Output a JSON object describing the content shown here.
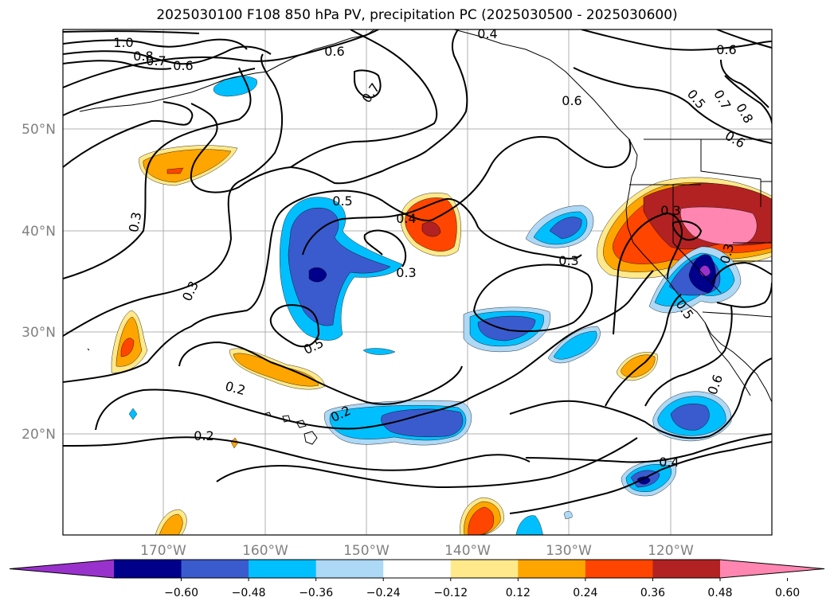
{
  "title": "2025030100 F108 850 hPa PV, precipitation PC (2025030500 - 2025030600)",
  "latitude_labels": [
    "50°N",
    "40°N",
    "30°N",
    "20°N"
  ],
  "longitude_labels": [
    "170°W",
    "160°W",
    "150°W",
    "140°W",
    "130°W",
    "120°W"
  ],
  "contour_labels": [
    "1.0",
    "0.8",
    "0.7",
    "0.6",
    "0.6",
    "0.4",
    "0.6",
    "0.7",
    "0.6",
    "0.5",
    "0.7",
    "0.8",
    "0.6",
    "0.3",
    "0.5",
    "0.4",
    "0.3",
    "0.3",
    "0.3",
    "0.3",
    "0.3",
    "0.5",
    "0.5",
    "0.2",
    "0.2",
    "0.2",
    "0.6",
    "0.4"
  ],
  "colorbar": {
    "ticks": [
      "−0.60",
      "−0.48",
      "−0.36",
      "−0.24",
      "−0.12",
      "0.12",
      "0.24",
      "0.36",
      "0.48",
      "0.60"
    ],
    "colors": [
      "#9932cc",
      "#00008b",
      "#3a5bcd",
      "#00bfff",
      "#add8f6",
      "#ffffff",
      "#ffe98a",
      "#ffa500",
      "#ff4500",
      "#b22222",
      "#ff86b0"
    ]
  }
}
